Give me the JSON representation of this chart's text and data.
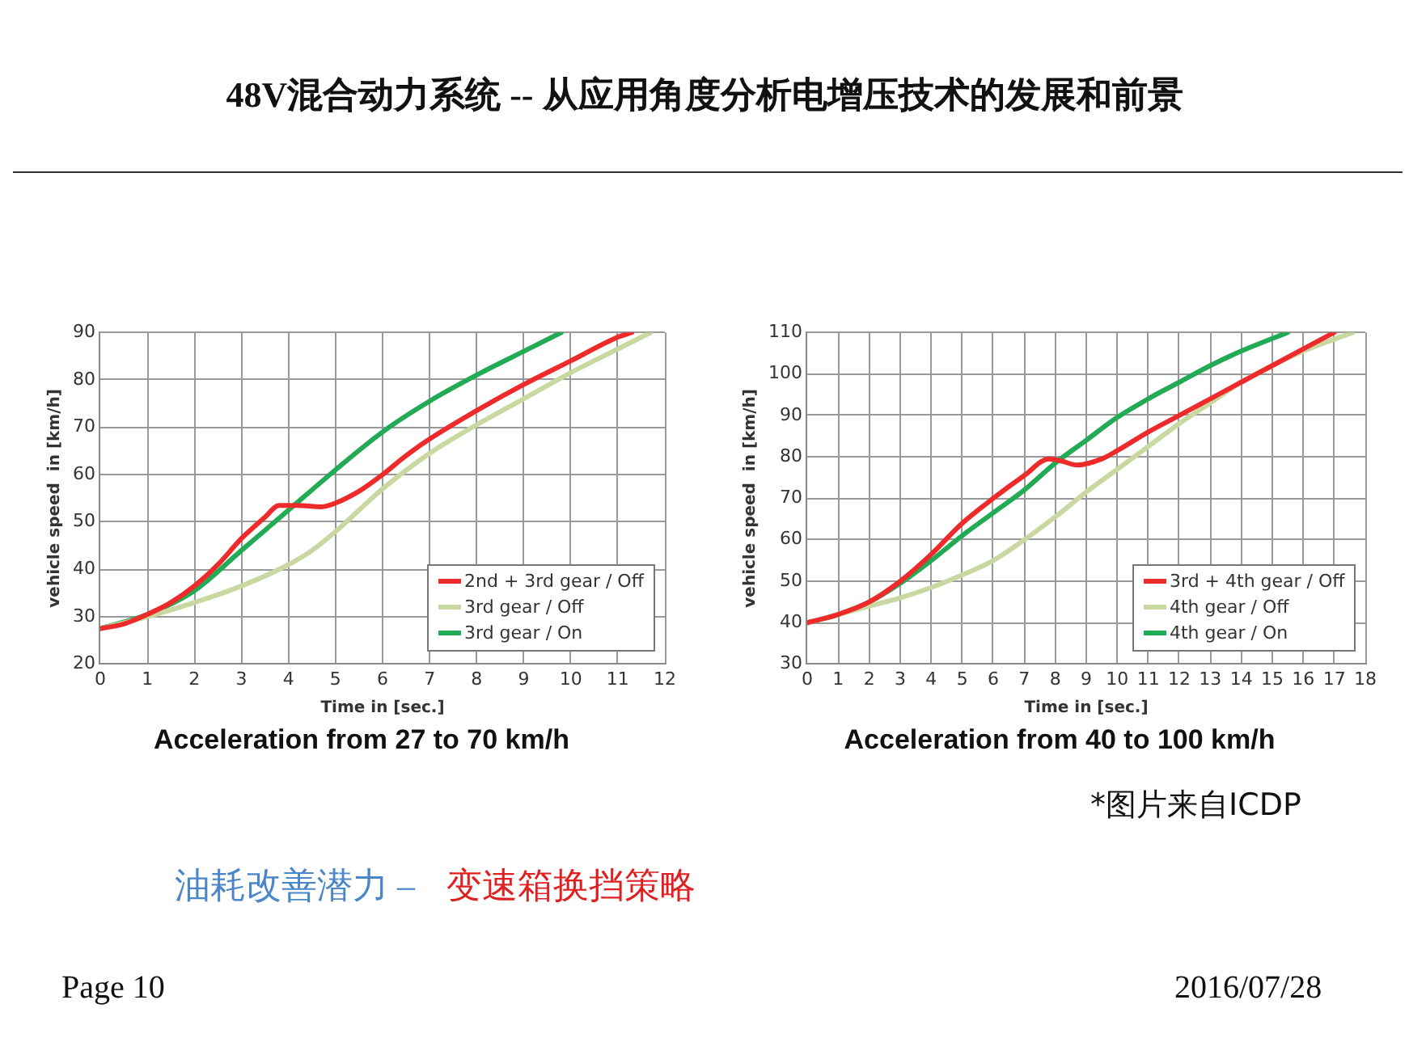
{
  "chart_data": [
    {
      "type": "line",
      "title": "Acceleration from 27 to 70 km/h",
      "xlabel": "Time in [sec.]",
      "ylabel": "vehicle speed  in [km/h]",
      "xlim": [
        0,
        12
      ],
      "xticks": [
        0,
        1,
        2,
        3,
        4,
        5,
        6,
        7,
        8,
        9,
        10,
        11,
        12
      ],
      "ylim": [
        20,
        90
      ],
      "yticks": [
        20,
        30,
        40,
        50,
        60,
        70,
        80,
        90
      ],
      "grid": true,
      "legend": "bottom right",
      "marker": "none",
      "series": [
        {
          "name": "2nd + 3rd gear / Off",
          "color": "#ee2a2a",
          "x": [
            0,
            0.5,
            1,
            1.5,
            2,
            2.5,
            3,
            3.5,
            3.8,
            4.2,
            4.7,
            5,
            5.5,
            6,
            6.5,
            7,
            8,
            9,
            10,
            11,
            11.3
          ],
          "values": [
            27.5,
            28.5,
            30.5,
            33,
            36.5,
            41,
            46.5,
            51,
            53.5,
            53.5,
            53.2,
            54,
            56.5,
            60,
            64,
            67.5,
            73.5,
            79,
            84,
            89,
            90
          ]
        },
        {
          "name": "3rd gear / Off",
          "color": "#c8d8a0",
          "x": [
            0,
            1,
            2,
            3,
            4,
            4.5,
            5,
            5.5,
            6,
            7,
            8,
            9,
            10,
            11,
            11.7
          ],
          "values": [
            27.5,
            30,
            33,
            36.5,
            41,
            44,
            48,
            52.5,
            57,
            64.5,
            70.5,
            76,
            81.5,
            86.5,
            90
          ]
        },
        {
          "name": "3rd gear / On",
          "color": "#22aa55",
          "x": [
            0,
            1,
            2,
            3,
            4,
            5,
            6,
            7,
            8,
            9,
            9.8
          ],
          "values": [
            27.5,
            30.5,
            35.5,
            44,
            52.5,
            61,
            69,
            75.5,
            81,
            86,
            90
          ]
        }
      ]
    },
    {
      "type": "line",
      "title": "Acceleration from 40 to 100 km/h",
      "xlabel": "Time in [sec.]",
      "ylabel": "vehicle speed  in [km/h]",
      "xlim": [
        0,
        18
      ],
      "xticks": [
        0,
        1,
        2,
        3,
        4,
        5,
        6,
        7,
        8,
        9,
        10,
        11,
        12,
        13,
        14,
        15,
        16,
        17,
        18
      ],
      "ylim": [
        30,
        110
      ],
      "yticks": [
        30,
        40,
        50,
        60,
        70,
        80,
        90,
        100,
        110
      ],
      "grid": true,
      "legend": "bottom right",
      "marker": "none",
      "series": [
        {
          "name": "3rd + 4th gear / Off",
          "color": "#ee2a2a",
          "x": [
            0,
            1,
            2,
            3,
            4,
            5,
            6,
            7,
            7.8,
            8.2,
            8.7,
            9.5,
            10,
            11,
            12,
            13,
            14,
            15,
            16,
            17
          ],
          "values": [
            40,
            42,
            45,
            50,
            56.5,
            64,
            70,
            75.5,
            79.5,
            79,
            78,
            79.5,
            81.5,
            86,
            90,
            94,
            98,
            102,
            106,
            110
          ]
        },
        {
          "name": "4th gear / Off",
          "color": "#c8d8a0",
          "x": [
            0,
            1,
            2,
            3,
            4,
            5,
            6,
            7,
            8,
            9,
            10,
            11,
            12,
            13,
            14,
            15,
            16,
            17.6
          ],
          "values": [
            40,
            42,
            44,
            46,
            48.5,
            51.5,
            55,
            60,
            65.5,
            71.5,
            77,
            82.5,
            88,
            93,
            98,
            102,
            105.5,
            110
          ]
        },
        {
          "name": "4th gear / On",
          "color": "#22aa55",
          "x": [
            0,
            1,
            2,
            3,
            4,
            5,
            6,
            7,
            8,
            9,
            10,
            11,
            12,
            13,
            14,
            15.5
          ],
          "values": [
            40,
            42,
            45,
            49.5,
            55,
            61,
            66.5,
            72,
            78.5,
            84,
            89.5,
            94,
            98,
            102,
            105.5,
            110
          ]
        }
      ]
    },
    {
      "type": "other",
      "title": "48V混合动力系统 -- 从应用角度分析电增压技术的发展和前景",
      "annotations": [
        "*图片来自ICDP",
        "油耗改善潜力 –",
        "变速箱换挡策略",
        "Page 10",
        "2016/07/28"
      ]
    }
  ]
}
